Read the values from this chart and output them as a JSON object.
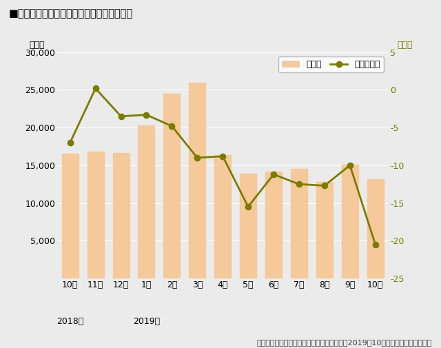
{
  "title": "■成約数および前年同月比の推移（首都圏）",
  "categories": [
    "10月",
    "11月",
    "12月",
    "1月",
    "2月",
    "3月",
    "4月",
    "5月",
    "6月",
    "7月",
    "8月",
    "9月",
    "10月"
  ],
  "year_label_2018": "2018年",
  "year_label_2019": "2019年",
  "year_idx_2018": 0,
  "year_idx_2019": 3,
  "bar_values": [
    16500,
    16800,
    16600,
    20300,
    24500,
    26000,
    16400,
    13900,
    14200,
    14500,
    12800,
    15100,
    13200
  ],
  "line_values": [
    -7.0,
    0.2,
    -3.5,
    -3.3,
    -4.8,
    -9.0,
    -8.8,
    -15.5,
    -11.2,
    -12.5,
    -12.7,
    -10.0,
    -20.5
  ],
  "bar_color": "#F5C99A",
  "bar_edgecolor": "#F5C99A",
  "line_color": "#7B7B00",
  "line_marker": "o",
  "background_color": "#EBEBEB",
  "plot_background": "#EBEBEB",
  "left_ylabel": "（件）",
  "right_ylabel": "（％）",
  "ylim_left": [
    0,
    30000
  ],
  "ylim_right": [
    -25,
    5
  ],
  "yticks_left": [
    0,
    5000,
    10000,
    15000,
    20000,
    25000,
    30000
  ],
  "yticks_right": [
    -25,
    -20,
    -15,
    -10,
    -5,
    0,
    5
  ],
  "legend_bar_label": "成約数",
  "legend_line_label": "前年同月比",
  "source_text": "出典：「首都圏の居住用賃貸物件成約動向（2019年10月）」アットホーム調べ",
  "title_fontsize": 10.5,
  "tick_fontsize": 9,
  "legend_fontsize": 9,
  "source_fontsize": 8
}
